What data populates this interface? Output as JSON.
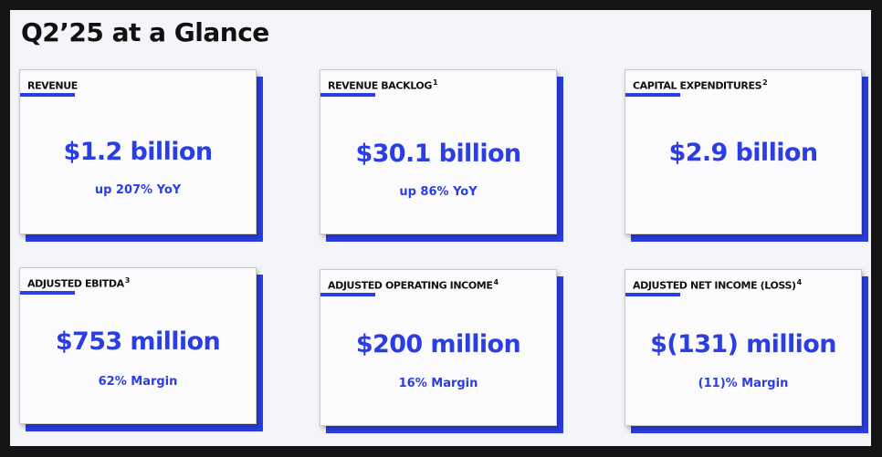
{
  "title": "Q2’25 at a Glance",
  "colors": {
    "accent": "#2b3ee3",
    "text": "#111111",
    "card": "#fbfbfd",
    "background": "#f4f5f8"
  },
  "cards": [
    {
      "label": "REVENUE",
      "footnote": "",
      "value": "$1.2 billion",
      "sub": "up 207% YoY"
    },
    {
      "label": "REVENUE BACKLOG",
      "footnote": "1",
      "value": "$30.1 billion",
      "sub": "up 86% YoY"
    },
    {
      "label": "CAPITAL EXPENDITURES",
      "footnote": "2",
      "value": "$2.9 billion",
      "sub": ""
    },
    {
      "label": "ADJUSTED EBITDA",
      "footnote": "3",
      "value": "$753 million",
      "sub": "62% Margin"
    },
    {
      "label": "ADJUSTED OPERATING INCOME",
      "footnote": "4",
      "value": "$200 million",
      "sub": "16% Margin"
    },
    {
      "label": "ADJUSTED NET INCOME (LOSS)",
      "footnote": "4",
      "value": "$(131) million",
      "sub": "(11)% Margin"
    }
  ]
}
